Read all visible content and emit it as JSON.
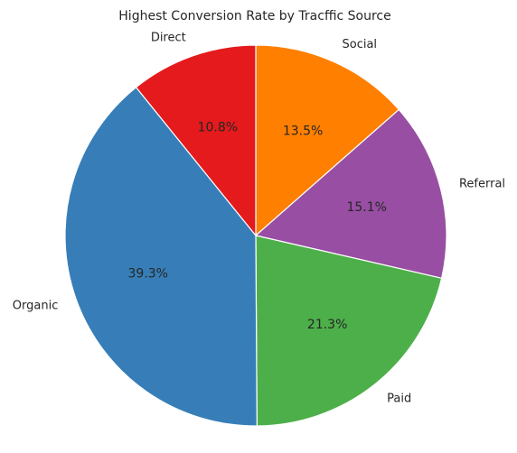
{
  "chart_data": {
    "type": "pie",
    "title": "Highest Conversion Rate by Tracffic Source",
    "start_angle_deg": 90,
    "direction": "clockwise",
    "slices": [
      {
        "label": "Social",
        "value": 13.5,
        "pct_label": "13.5%",
        "color": "#ff7f00"
      },
      {
        "label": "Referral",
        "value": 15.1,
        "pct_label": "15.1%",
        "color": "#984ea3"
      },
      {
        "label": "Paid",
        "value": 21.3,
        "pct_label": "21.3%",
        "color": "#4daf4a"
      },
      {
        "label": "Organic",
        "value": 39.3,
        "pct_label": "39.3%",
        "color": "#377eb8"
      },
      {
        "label": "Direct",
        "value": 10.8,
        "pct_label": "10.8%",
        "color": "#e41a1c"
      }
    ]
  }
}
